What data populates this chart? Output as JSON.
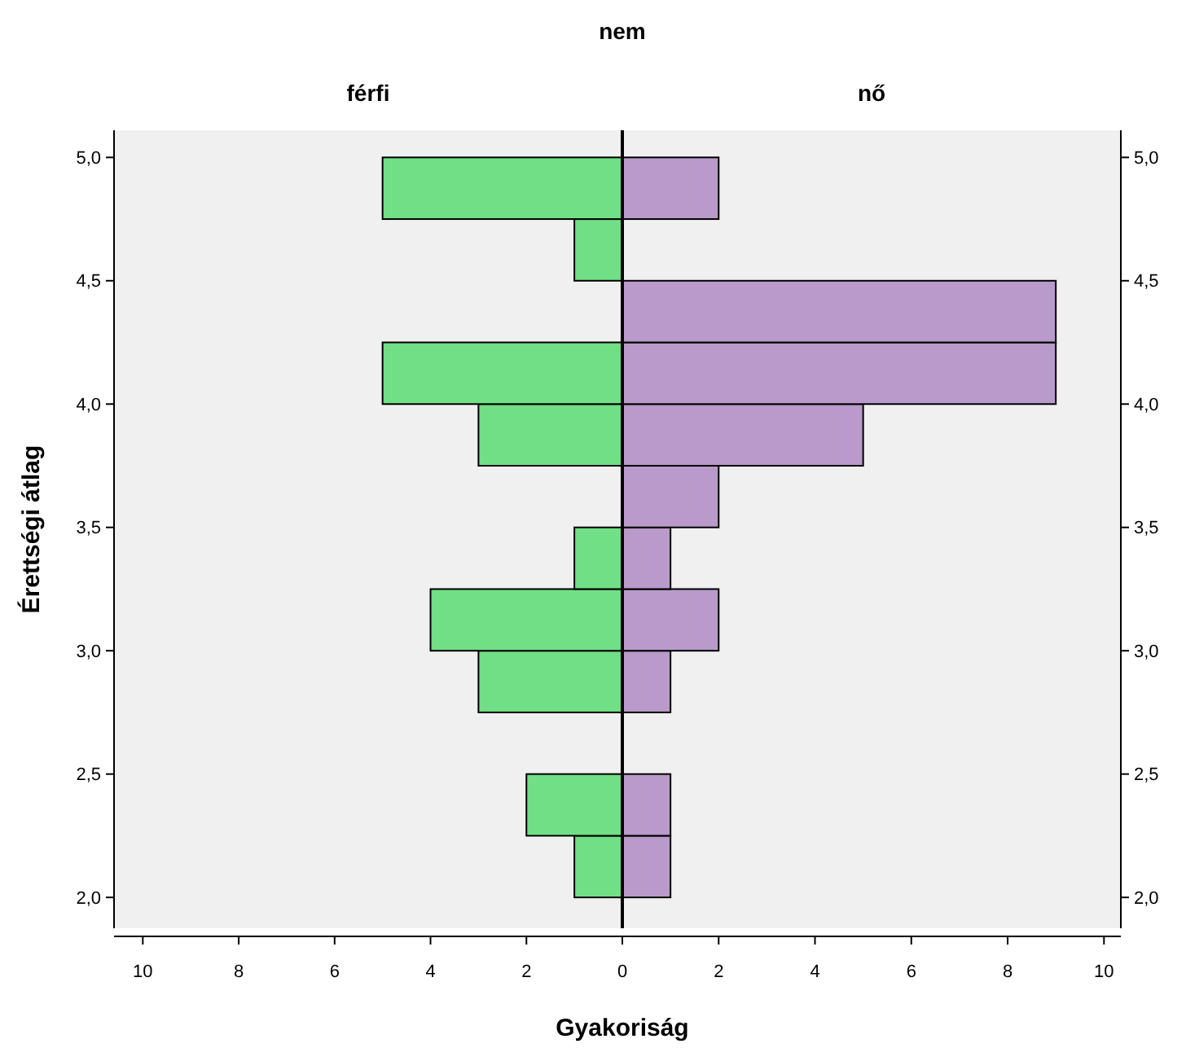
{
  "chart_data": [
    {
      "type": "histogram",
      "orientation": "horizontal",
      "title": "nem",
      "subtitle": "férfi",
      "xlabel": "Gyakoriság",
      "ylabel": "Érettségi átlag",
      "color": "#70df85",
      "bins": [
        2,
        2.25,
        2.5,
        2.75,
        3,
        3.25,
        3.5,
        3.75,
        4,
        4.25,
        4.5,
        4.75,
        5
      ],
      "values": [
        1,
        2,
        0,
        3,
        4,
        1,
        0,
        3,
        5,
        0,
        1,
        5
      ],
      "xlim": [
        10.6,
        0
      ],
      "xticks": [
        10,
        8,
        6,
        4,
        2,
        0
      ],
      "ylim": [
        1.875,
        5.11
      ],
      "yticks": [
        {
          "value": 2,
          "label": "2,0"
        },
        {
          "value": 2.5,
          "label": "2,5"
        },
        {
          "value": 3,
          "label": "3,0"
        },
        {
          "value": 3.5,
          "label": "3,5"
        },
        {
          "value": 4,
          "label": "4,0"
        },
        {
          "value": 4.5,
          "label": "4,5"
        },
        {
          "value": 5,
          "label": "5,0"
        }
      ]
    },
    {
      "type": "histogram",
      "orientation": "horizontal",
      "subtitle": "nő",
      "color": "#b99acb",
      "bins": [
        2,
        2.25,
        2.5,
        2.75,
        3,
        3.25,
        3.5,
        3.75,
        4,
        4.25,
        4.5,
        4.75,
        5
      ],
      "values": [
        1,
        1,
        0,
        1,
        2,
        1,
        2,
        5,
        9,
        9,
        0,
        2
      ],
      "xlim": [
        0,
        10.35
      ],
      "xticks": [
        {
          "value": 0,
          "label": null
        },
        2,
        4,
        6,
        8,
        10
      ],
      "ylim": [
        1.875,
        5.11
      ],
      "yticks": [
        {
          "value": 2,
          "label": "2,0"
        },
        {
          "value": 2.5,
          "label": "2,5"
        },
        {
          "value": 3,
          "label": "3,0"
        },
        {
          "value": 3.5,
          "label": "3,5"
        },
        {
          "value": 4,
          "label": "4,0"
        },
        {
          "value": 4.5,
          "label": "4,5"
        },
        {
          "value": 5,
          "label": "5,0"
        }
      ]
    }
  ]
}
